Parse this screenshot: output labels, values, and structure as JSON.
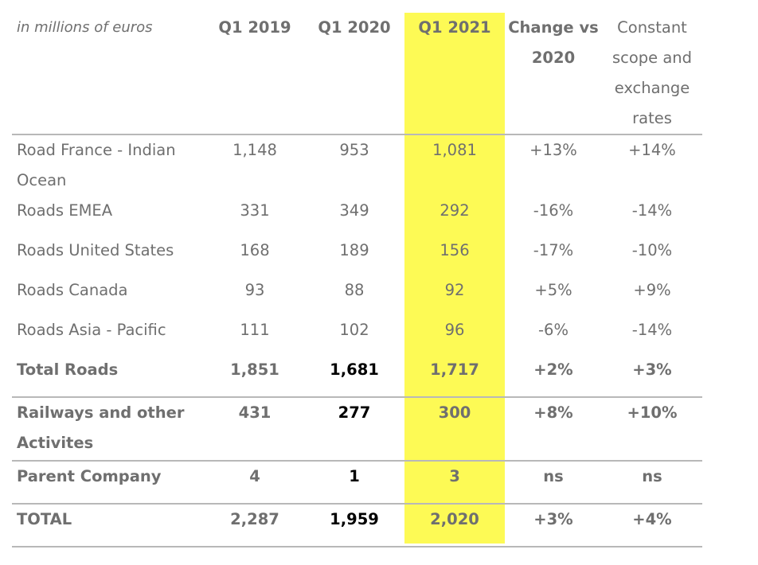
{
  "table": {
    "unit_label": "in millions of euros",
    "headers": [
      "Q1 2019",
      "Q1 2020",
      "Q1 2021",
      "Change vs 2020",
      "Constant scope and exchange rates"
    ],
    "rows": [
      {
        "label": "Road France - Indian Ocean",
        "values": [
          "1,148",
          "953",
          "1,081",
          "+13%",
          "+14%"
        ]
      },
      {
        "label": "Roads EMEA",
        "values": [
          "331",
          "349",
          "292",
          "-16%",
          "-14%"
        ]
      },
      {
        "label": "Roads United States",
        "values": [
          "168",
          "189",
          "156",
          "-17%",
          "-10%"
        ]
      },
      {
        "label": "Roads Canada",
        "values": [
          "93",
          "88",
          "92",
          "+5%",
          "+9%"
        ]
      },
      {
        "label": "Roads Asia - Pacific",
        "values": [
          "111",
          "102",
          "96",
          "-6%",
          "-14%"
        ]
      },
      {
        "label": "Total Roads",
        "values": [
          "1,851",
          "1,681",
          "1,717",
          "+2%",
          "+3%"
        ]
      },
      {
        "label": "Railways and other Activites",
        "values": [
          "431",
          "277",
          "300",
          "+8%",
          "+10%"
        ]
      },
      {
        "label": "Parent Company",
        "values": [
          "4",
          "1",
          "3",
          "ns",
          "ns"
        ]
      },
      {
        "label": "TOTAL",
        "values": [
          "2,287",
          "1,959",
          "2,020",
          "+3%",
          "+4%"
        ]
      }
    ],
    "highlight_color": "#fdfa55",
    "highlighted_column": "Q1 2021"
  }
}
